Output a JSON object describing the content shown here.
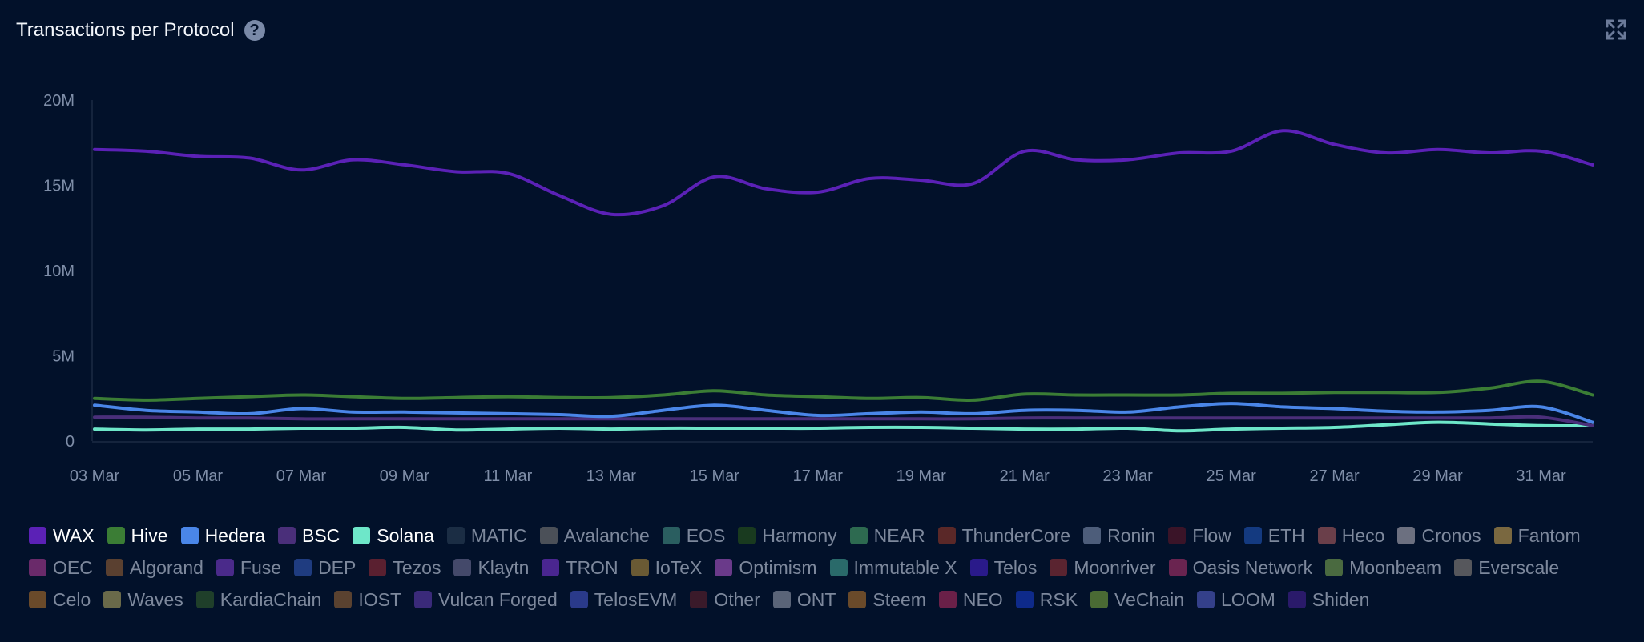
{
  "header": {
    "title": "Transactions per Protocol",
    "help_icon": "question-circle-icon",
    "expand_icon": "expand-arrows-icon"
  },
  "colors": {
    "background": "#02112a",
    "axis_text": "#7f8ea8"
  },
  "chart_data": {
    "type": "line",
    "title": "Transactions per Protocol",
    "xlabel": "",
    "ylabel": "",
    "ylim": [
      0,
      20000000
    ],
    "grid": false,
    "y_ticks": [
      {
        "value": 0,
        "label": "0"
      },
      {
        "value": 5000000,
        "label": "5M"
      },
      {
        "value": 10000000,
        "label": "10M"
      },
      {
        "value": 15000000,
        "label": "15M"
      },
      {
        "value": 20000000,
        "label": "20M"
      }
    ],
    "x": [
      "03 Mar",
      "04 Mar",
      "05 Mar",
      "06 Mar",
      "07 Mar",
      "08 Mar",
      "09 Mar",
      "10 Mar",
      "11 Mar",
      "12 Mar",
      "13 Mar",
      "14 Mar",
      "15 Mar",
      "16 Mar",
      "17 Mar",
      "18 Mar",
      "19 Mar",
      "20 Mar",
      "21 Mar",
      "22 Mar",
      "23 Mar",
      "24 Mar",
      "25 Mar",
      "26 Mar",
      "27 Mar",
      "28 Mar",
      "29 Mar",
      "30 Mar",
      "31 Mar",
      "01 Apr"
    ],
    "x_tick_labels": [
      "03 Mar",
      "05 Mar",
      "07 Mar",
      "09 Mar",
      "11 Mar",
      "13 Mar",
      "15 Mar",
      "17 Mar",
      "19 Mar",
      "21 Mar",
      "23 Mar",
      "25 Mar",
      "27 Mar",
      "29 Mar",
      "31 Mar"
    ],
    "series": [
      {
        "name": "WAX",
        "color": "#5b21b6",
        "values": [
          17100000,
          17000000,
          16700000,
          16600000,
          15900000,
          16500000,
          16200000,
          15800000,
          15700000,
          14400000,
          13300000,
          13800000,
          15500000,
          14800000,
          14600000,
          15400000,
          15300000,
          15100000,
          17000000,
          16500000,
          16500000,
          16900000,
          17000000,
          18200000,
          17400000,
          16900000,
          17100000,
          16900000,
          17000000,
          16200000
        ]
      },
      {
        "name": "Hive",
        "color": "#3b7d35",
        "values": [
          2500000,
          2400000,
          2500000,
          2600000,
          2700000,
          2600000,
          2500000,
          2550000,
          2600000,
          2550000,
          2550000,
          2700000,
          2950000,
          2700000,
          2600000,
          2500000,
          2550000,
          2400000,
          2750000,
          2700000,
          2700000,
          2700000,
          2800000,
          2800000,
          2850000,
          2850000,
          2850000,
          3100000,
          3500000,
          2700000
        ]
      },
      {
        "name": "Hedera",
        "color": "#4a86e8",
        "values": [
          2100000,
          1800000,
          1700000,
          1600000,
          1900000,
          1700000,
          1700000,
          1650000,
          1600000,
          1550000,
          1450000,
          1800000,
          2100000,
          1800000,
          1500000,
          1600000,
          1700000,
          1600000,
          1800000,
          1800000,
          1700000,
          2000000,
          2200000,
          2000000,
          1900000,
          1750000,
          1700000,
          1800000,
          2000000,
          1100000
        ]
      },
      {
        "name": "BSC",
        "color": "#4a2f7a",
        "values": [
          1400000,
          1400000,
          1350000,
          1350000,
          1300000,
          1300000,
          1300000,
          1300000,
          1300000,
          1300000,
          1300000,
          1300000,
          1300000,
          1300000,
          1300000,
          1300000,
          1300000,
          1300000,
          1350000,
          1350000,
          1350000,
          1350000,
          1350000,
          1350000,
          1350000,
          1350000,
          1350000,
          1350000,
          1400000,
          900000
        ]
      },
      {
        "name": "Solana",
        "color": "#6ee7c9",
        "values": [
          700000,
          650000,
          700000,
          700000,
          750000,
          750000,
          800000,
          650000,
          700000,
          750000,
          700000,
          750000,
          750000,
          750000,
          750000,
          800000,
          800000,
          750000,
          700000,
          700000,
          750000,
          600000,
          700000,
          750000,
          800000,
          950000,
          1100000,
          1000000,
          900000,
          900000
        ]
      }
    ],
    "legend": [
      {
        "name": "WAX",
        "color": "#5b21b6",
        "active": true
      },
      {
        "name": "Hive",
        "color": "#3b7d35",
        "active": true
      },
      {
        "name": "Hedera",
        "color": "#4a86e8",
        "active": true
      },
      {
        "name": "BSC",
        "color": "#4a2f7a",
        "active": true
      },
      {
        "name": "Solana",
        "color": "#6ee7c9",
        "active": true
      },
      {
        "name": "MATIC",
        "color": "#1b2d44",
        "active": false
      },
      {
        "name": "Avalanche",
        "color": "#4b5058",
        "active": false
      },
      {
        "name": "EOS",
        "color": "#2a5e60",
        "active": false
      },
      {
        "name": "Harmony",
        "color": "#193a1f",
        "active": false
      },
      {
        "name": "NEAR",
        "color": "#2d6a50",
        "active": false
      },
      {
        "name": "ThunderCore",
        "color": "#5a2828",
        "active": false
      },
      {
        "name": "Ronin",
        "color": "#4d5d7a",
        "active": false
      },
      {
        "name": "Flow",
        "color": "#3a1428",
        "active": false
      },
      {
        "name": "ETH",
        "color": "#143a80",
        "active": false
      },
      {
        "name": "Heco",
        "color": "#6a3f4a",
        "active": false
      },
      {
        "name": "Cronos",
        "color": "#6c7080",
        "active": false
      },
      {
        "name": "Fantom",
        "color": "#7a6840",
        "active": false
      },
      {
        "name": "OEC",
        "color": "#6a2a6a",
        "active": false
      },
      {
        "name": "Algorand",
        "color": "#5a4030",
        "active": false
      },
      {
        "name": "Fuse",
        "color": "#4a2a8a",
        "active": false
      },
      {
        "name": "DEP",
        "color": "#1f3c80",
        "active": false
      },
      {
        "name": "Tezos",
        "color": "#5a2030",
        "active": false
      },
      {
        "name": "Klaytn",
        "color": "#44496a",
        "active": false
      },
      {
        "name": "TRON",
        "color": "#4a2690",
        "active": false
      },
      {
        "name": "IoTeX",
        "color": "#6a5a34",
        "active": false
      },
      {
        "name": "Optimism",
        "color": "#6a3a8a",
        "active": false
      },
      {
        "name": "Immutable X",
        "color": "#2a6a6a",
        "active": false
      },
      {
        "name": "Telos",
        "color": "#2a1a8a",
        "active": false
      },
      {
        "name": "Moonriver",
        "color": "#5a2430",
        "active": false
      },
      {
        "name": "Oasis Network",
        "color": "#6a2450",
        "active": false
      },
      {
        "name": "Moonbeam",
        "color": "#4a6a40",
        "active": false
      },
      {
        "name": "Everscale",
        "color": "#56575c",
        "active": false
      },
      {
        "name": "Celo",
        "color": "#6a4a2a",
        "active": false
      },
      {
        "name": "Waves",
        "color": "#6a6a4a",
        "active": false
      },
      {
        "name": "KardiaChain",
        "color": "#1f3f2a",
        "active": false
      },
      {
        "name": "IOST",
        "color": "#5a4230",
        "active": false
      },
      {
        "name": "Vulcan Forged",
        "color": "#3a2a7a",
        "active": false
      },
      {
        "name": "TelosEVM",
        "color": "#2a3a8a",
        "active": false
      },
      {
        "name": "Other",
        "color": "#3a1a2a",
        "active": false
      },
      {
        "name": "ONT",
        "color": "#5a6478",
        "active": false
      },
      {
        "name": "Steem",
        "color": "#6a4a2a",
        "active": false
      },
      {
        "name": "NEO",
        "color": "#6a2048",
        "active": false
      },
      {
        "name": "RSK",
        "color": "#0e2a8a",
        "active": false
      },
      {
        "name": "VeChain",
        "color": "#4a6a34",
        "active": false
      },
      {
        "name": "LOOM",
        "color": "#34408a",
        "active": false
      },
      {
        "name": "Shiden",
        "color": "#2a1a6a",
        "active": false
      }
    ]
  }
}
